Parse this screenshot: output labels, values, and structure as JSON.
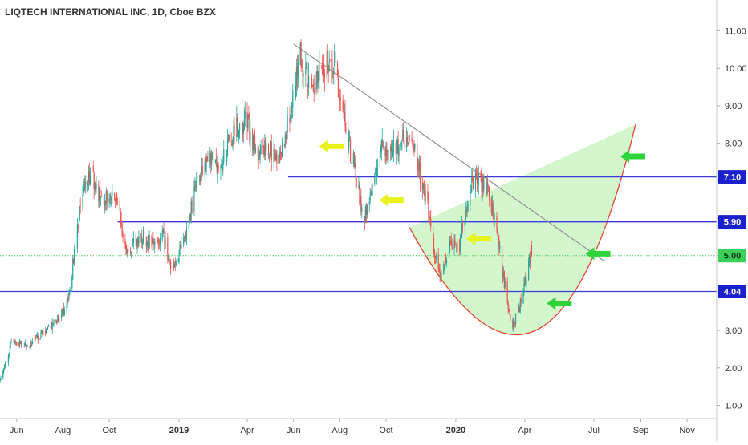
{
  "chart_data": {
    "type": "candlestick",
    "title": "LIQTECH INTERNATIONAL INC, 1D, Cboe BZX",
    "y_axis": {
      "position": "right",
      "ticks": [
        1.0,
        2.0,
        3.0,
        4.0,
        5.0,
        6.0,
        7.0,
        8.0,
        9.0,
        10.0,
        11.0
      ],
      "tick_labels": [
        "1.00",
        "2.00",
        "3.00",
        "4.00",
        "5.00",
        "6.00",
        "7.00",
        "8.00",
        "9.00",
        "10.00",
        "11.00"
      ],
      "range": [
        0.6,
        11.8
      ]
    },
    "x_axis": {
      "labels": [
        {
          "text": "Jun",
          "date": "2018-06-01",
          "bold": false
        },
        {
          "text": "Aug",
          "date": "2018-08-01",
          "bold": false
        },
        {
          "text": "Oct",
          "date": "2018-10-01",
          "bold": false
        },
        {
          "text": "2019",
          "date": "2019-01-01",
          "bold": true
        },
        {
          "text": "Apr",
          "date": "2019-04-01",
          "bold": false
        },
        {
          "text": "Jun",
          "date": "2019-06-01",
          "bold": false
        },
        {
          "text": "Aug",
          "date": "2019-08-01",
          "bold": false
        },
        {
          "text": "Oct",
          "date": "2019-10-01",
          "bold": false
        },
        {
          "text": "2020",
          "date": "2020-01-01",
          "bold": true
        },
        {
          "text": "Apr",
          "date": "2020-04-01",
          "bold": false
        },
        {
          "text": "Jul",
          "date": "2020-07-01",
          "bold": false
        },
        {
          "text": "Sep",
          "date": "2020-09-01",
          "bold": false
        },
        {
          "text": "Nov",
          "date": "2020-11-01",
          "bold": false
        }
      ],
      "range": [
        "2018-05-10",
        "2020-12-10"
      ]
    },
    "price_path": [
      [
        "2018-05-10",
        1.6
      ],
      [
        "2018-05-25",
        2.7
      ],
      [
        "2018-06-15",
        2.6
      ],
      [
        "2018-07-10",
        3.0
      ],
      [
        "2018-07-25",
        3.3
      ],
      [
        "2018-08-05",
        3.6
      ],
      [
        "2018-08-12",
        4.4
      ],
      [
        "2018-08-22",
        6.1
      ],
      [
        "2018-09-05",
        7.2
      ],
      [
        "2018-09-20",
        6.5
      ],
      [
        "2018-10-10",
        6.6
      ],
      [
        "2018-10-25",
        5.0
      ],
      [
        "2018-11-10",
        5.6
      ],
      [
        "2018-11-25",
        5.3
      ],
      [
        "2018-12-10",
        5.6
      ],
      [
        "2018-12-22",
        4.6
      ],
      [
        "2019-01-10",
        5.5
      ],
      [
        "2019-01-25",
        7.0
      ],
      [
        "2019-02-10",
        7.6
      ],
      [
        "2019-02-25",
        7.4
      ],
      [
        "2019-03-15",
        8.4
      ],
      [
        "2019-04-01",
        8.6
      ],
      [
        "2019-04-12",
        7.8
      ],
      [
        "2019-05-01",
        7.9
      ],
      [
        "2019-05-10",
        7.4
      ],
      [
        "2019-05-20",
        8.0
      ],
      [
        "2019-06-01",
        9.4
      ],
      [
        "2019-06-10",
        10.3
      ],
      [
        "2019-06-25",
        9.6
      ],
      [
        "2019-07-10",
        10.0
      ],
      [
        "2019-07-25",
        10.2
      ],
      [
        "2019-08-10",
        8.2
      ],
      [
        "2019-08-22",
        7.2
      ],
      [
        "2019-09-01",
        6.0
      ],
      [
        "2019-09-12",
        6.6
      ],
      [
        "2019-09-25",
        7.9
      ],
      [
        "2019-10-10",
        7.8
      ],
      [
        "2019-10-25",
        8.1
      ],
      [
        "2019-11-05",
        7.9
      ],
      [
        "2019-11-15",
        7.2
      ],
      [
        "2019-11-25",
        6.3
      ],
      [
        "2019-12-05",
        5.0
      ],
      [
        "2019-12-12",
        4.5
      ],
      [
        "2019-12-25",
        5.3
      ],
      [
        "2020-01-05",
        5.2
      ],
      [
        "2020-01-15",
        6.4
      ],
      [
        "2020-01-25",
        7.1
      ],
      [
        "2020-02-05",
        6.9
      ],
      [
        "2020-02-15",
        6.6
      ],
      [
        "2020-02-25",
        5.5
      ],
      [
        "2020-03-05",
        4.3
      ],
      [
        "2020-03-15",
        3.1
      ],
      [
        "2020-03-25",
        3.6
      ],
      [
        "2020-04-05",
        4.6
      ],
      [
        "2020-04-12",
        5.4
      ]
    ],
    "horizontal_lines": [
      {
        "name": "level-7-10",
        "price": 7.1,
        "label": "7.10",
        "start": "2019-05-25",
        "color": "#3b3bd9",
        "style": "solid"
      },
      {
        "name": "level-5-90",
        "price": 5.9,
        "label": "5.90",
        "start": "2018-10-12",
        "color": "#3b3bd9",
        "style": "solid"
      },
      {
        "name": "level-5-00",
        "price": 5.0,
        "label": "5.00",
        "start": "2018-05-10",
        "color": "#3ccf5a",
        "style": "dotted"
      },
      {
        "name": "level-4-04",
        "price": 4.04,
        "label": "4.04",
        "start": "2018-05-10",
        "color": "#3b3bd9",
        "style": "solid"
      }
    ],
    "trendline": {
      "from": [
        "2019-06-01",
        10.65
      ],
      "to": [
        "2020-07-15",
        4.85
      ],
      "color": "#8a8a8a"
    },
    "cup_pattern": {
      "left_rim": [
        "2019-11-01",
        5.75
      ],
      "bottom": [
        "2020-04-15",
        3.0
      ],
      "right_rim": [
        "2020-08-25",
        8.5
      ],
      "fill": "#cdf5c4",
      "stroke": "#e0432c"
    },
    "arrows": [
      {
        "name": "yellow-arrow-1",
        "color": "#e8f21c",
        "at": [
          "2019-07-05",
          7.92
        ]
      },
      {
        "name": "yellow-arrow-2",
        "color": "#e8f21c",
        "at": [
          "2019-09-22",
          6.48
        ]
      },
      {
        "name": "yellow-arrow-3",
        "color": "#e8f21c",
        "at": [
          "2020-01-15",
          5.45
        ]
      },
      {
        "name": "green-arrow-1",
        "color": "#2fd33a",
        "at": [
          "2020-08-05",
          7.65
        ]
      },
      {
        "name": "green-arrow-2",
        "color": "#2fd33a",
        "at": [
          "2020-06-20",
          5.05
        ]
      },
      {
        "name": "green-arrow-3",
        "color": "#2fd33a",
        "at": [
          "2020-04-30",
          3.72
        ]
      }
    ],
    "colors": {
      "up": "#26a69a",
      "down": "#ef5350",
      "axis_text": "#333333",
      "label_bg": "#1b20cf",
      "grid_line_5": "#3ccf5a"
    }
  }
}
